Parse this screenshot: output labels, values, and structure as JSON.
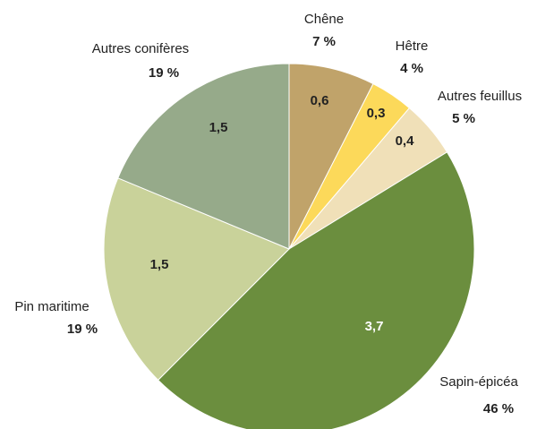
{
  "chart_data": {
    "type": "pie",
    "categories": [
      "Chêne",
      "Hêtre",
      "Autres feuillus",
      "Sapin-épicéa",
      "Pin maritime",
      "Autres conifères"
    ],
    "values": [
      0.6,
      0.3,
      0.4,
      3.7,
      1.5,
      1.5
    ],
    "value_labels": [
      "0,6",
      "0,3",
      "0,4",
      "3,7",
      "1,5",
      "1,5"
    ],
    "percents": [
      7,
      4,
      5,
      46,
      19,
      19
    ],
    "percent_labels": [
      "7 %",
      "4 %",
      "5 %",
      "46 %",
      "19 %",
      "19 %"
    ],
    "colors": [
      "#c0a36a",
      "#fcd95a",
      "#f0e0b8",
      "#6b8e3e",
      "#c9d29a",
      "#96aa8a"
    ]
  }
}
